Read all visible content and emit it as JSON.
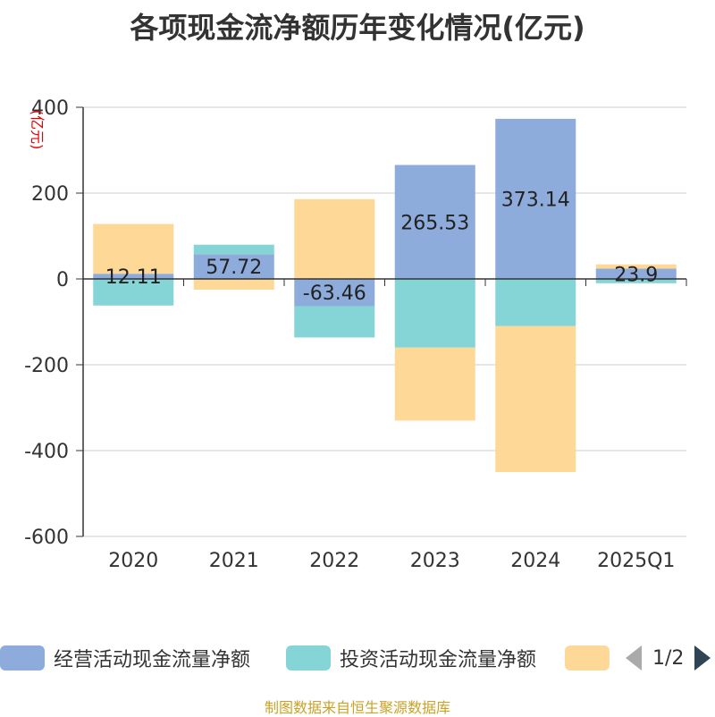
{
  "title": "各项现金流净额历年变化情况(亿元)",
  "source": "制图数据来自恒生聚源数据库",
  "legend_page": "1/2",
  "colors": {
    "operating": "#8eacdb",
    "investing": "#85d4d6",
    "financing": "#fed896",
    "axis": "#333333",
    "grid": "#cccccc",
    "unit": "#e60000"
  },
  "chart_data": {
    "type": "bar",
    "stacked": true,
    "unit_label": "(亿元)",
    "categories": [
      "2020",
      "2021",
      "2022",
      "2023",
      "2024",
      "2025Q1"
    ],
    "ylim": [
      -600,
      400
    ],
    "yticks": [
      400,
      200,
      0,
      -200,
      -400,
      -600
    ],
    "grid": true,
    "legend_position": "bottom",
    "series": [
      {
        "name": "经营活动现金流量净额",
        "values": [
          12.11,
          57.72,
          -63.46,
          265.53,
          373.14,
          23.9
        ],
        "labels": [
          "12.11",
          "57.72",
          "-63.46",
          "265.53",
          "373.14",
          "23.9"
        ]
      },
      {
        "name": "投资活动现金流量净额",
        "values": [
          -62,
          22,
          -73,
          -160,
          -110,
          -10
        ],
        "labels": []
      },
      {
        "name": "",
        "values": [
          116,
          -25,
          186,
          -170,
          -340,
          10
        ],
        "labels": []
      }
    ]
  }
}
